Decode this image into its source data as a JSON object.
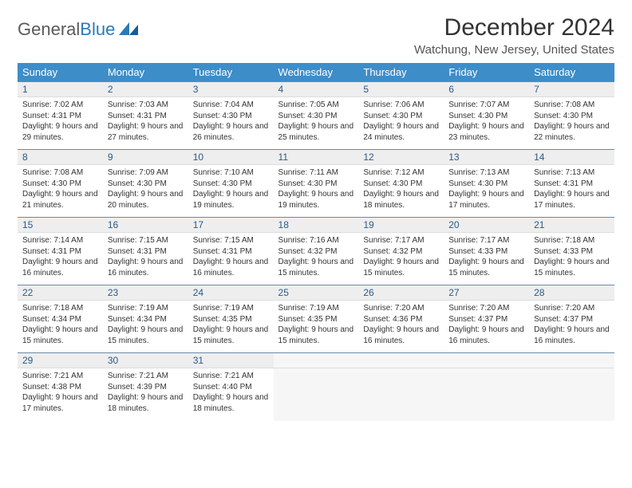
{
  "brand": {
    "word1": "General",
    "word2": "Blue"
  },
  "title": "December 2024",
  "location": "Watchung, New Jersey, United States",
  "colors": {
    "header_bg": "#3d8dc9",
    "header_text": "#ffffff",
    "daynum_bg": "#eeeeee",
    "daynum_text": "#2a5a88",
    "row_divider": "#6a8aa8",
    "body_text": "#333333",
    "brand_gray": "#5a5a5a",
    "brand_blue": "#2a7ab8"
  },
  "typography": {
    "title_fontsize": 30,
    "location_fontsize": 15,
    "weekday_fontsize": 13,
    "daynum_fontsize": 12,
    "cell_fontsize": 10
  },
  "weekdays": [
    "Sunday",
    "Monday",
    "Tuesday",
    "Wednesday",
    "Thursday",
    "Friday",
    "Saturday"
  ],
  "weeks": [
    [
      {
        "n": "1",
        "sr": "7:02 AM",
        "ss": "4:31 PM",
        "dl": "9 hours and 29 minutes."
      },
      {
        "n": "2",
        "sr": "7:03 AM",
        "ss": "4:31 PM",
        "dl": "9 hours and 27 minutes."
      },
      {
        "n": "3",
        "sr": "7:04 AM",
        "ss": "4:30 PM",
        "dl": "9 hours and 26 minutes."
      },
      {
        "n": "4",
        "sr": "7:05 AM",
        "ss": "4:30 PM",
        "dl": "9 hours and 25 minutes."
      },
      {
        "n": "5",
        "sr": "7:06 AM",
        "ss": "4:30 PM",
        "dl": "9 hours and 24 minutes."
      },
      {
        "n": "6",
        "sr": "7:07 AM",
        "ss": "4:30 PM",
        "dl": "9 hours and 23 minutes."
      },
      {
        "n": "7",
        "sr": "7:08 AM",
        "ss": "4:30 PM",
        "dl": "9 hours and 22 minutes."
      }
    ],
    [
      {
        "n": "8",
        "sr": "7:08 AM",
        "ss": "4:30 PM",
        "dl": "9 hours and 21 minutes."
      },
      {
        "n": "9",
        "sr": "7:09 AM",
        "ss": "4:30 PM",
        "dl": "9 hours and 20 minutes."
      },
      {
        "n": "10",
        "sr": "7:10 AM",
        "ss": "4:30 PM",
        "dl": "9 hours and 19 minutes."
      },
      {
        "n": "11",
        "sr": "7:11 AM",
        "ss": "4:30 PM",
        "dl": "9 hours and 19 minutes."
      },
      {
        "n": "12",
        "sr": "7:12 AM",
        "ss": "4:30 PM",
        "dl": "9 hours and 18 minutes."
      },
      {
        "n": "13",
        "sr": "7:13 AM",
        "ss": "4:30 PM",
        "dl": "9 hours and 17 minutes."
      },
      {
        "n": "14",
        "sr": "7:13 AM",
        "ss": "4:31 PM",
        "dl": "9 hours and 17 minutes."
      }
    ],
    [
      {
        "n": "15",
        "sr": "7:14 AM",
        "ss": "4:31 PM",
        "dl": "9 hours and 16 minutes."
      },
      {
        "n": "16",
        "sr": "7:15 AM",
        "ss": "4:31 PM",
        "dl": "9 hours and 16 minutes."
      },
      {
        "n": "17",
        "sr": "7:15 AM",
        "ss": "4:31 PM",
        "dl": "9 hours and 16 minutes."
      },
      {
        "n": "18",
        "sr": "7:16 AM",
        "ss": "4:32 PM",
        "dl": "9 hours and 15 minutes."
      },
      {
        "n": "19",
        "sr": "7:17 AM",
        "ss": "4:32 PM",
        "dl": "9 hours and 15 minutes."
      },
      {
        "n": "20",
        "sr": "7:17 AM",
        "ss": "4:33 PM",
        "dl": "9 hours and 15 minutes."
      },
      {
        "n": "21",
        "sr": "7:18 AM",
        "ss": "4:33 PM",
        "dl": "9 hours and 15 minutes."
      }
    ],
    [
      {
        "n": "22",
        "sr": "7:18 AM",
        "ss": "4:34 PM",
        "dl": "9 hours and 15 minutes."
      },
      {
        "n": "23",
        "sr": "7:19 AM",
        "ss": "4:34 PM",
        "dl": "9 hours and 15 minutes."
      },
      {
        "n": "24",
        "sr": "7:19 AM",
        "ss": "4:35 PM",
        "dl": "9 hours and 15 minutes."
      },
      {
        "n": "25",
        "sr": "7:19 AM",
        "ss": "4:35 PM",
        "dl": "9 hours and 15 minutes."
      },
      {
        "n": "26",
        "sr": "7:20 AM",
        "ss": "4:36 PM",
        "dl": "9 hours and 16 minutes."
      },
      {
        "n": "27",
        "sr": "7:20 AM",
        "ss": "4:37 PM",
        "dl": "9 hours and 16 minutes."
      },
      {
        "n": "28",
        "sr": "7:20 AM",
        "ss": "4:37 PM",
        "dl": "9 hours and 16 minutes."
      }
    ],
    [
      {
        "n": "29",
        "sr": "7:21 AM",
        "ss": "4:38 PM",
        "dl": "9 hours and 17 minutes."
      },
      {
        "n": "30",
        "sr": "7:21 AM",
        "ss": "4:39 PM",
        "dl": "9 hours and 18 minutes."
      },
      {
        "n": "31",
        "sr": "7:21 AM",
        "ss": "4:40 PM",
        "dl": "9 hours and 18 minutes."
      },
      null,
      null,
      null,
      null
    ]
  ],
  "labels": {
    "sunrise": "Sunrise:",
    "sunset": "Sunset:",
    "daylight": "Daylight:"
  }
}
